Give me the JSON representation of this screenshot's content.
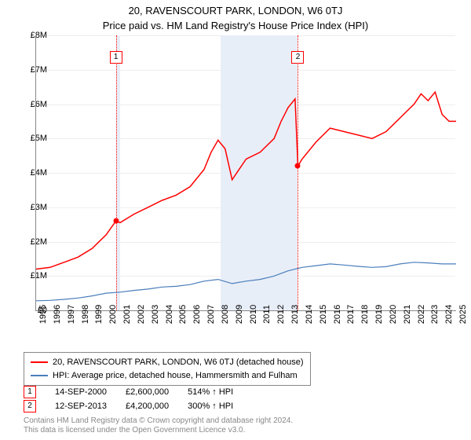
{
  "title": "20, RAVENSCOURT PARK, LONDON, W6 0TJ",
  "subtitle": "Price paid vs. HM Land Registry's House Price Index (HPI)",
  "chart": {
    "type": "line",
    "background_color": "#ffffff",
    "grid_color": "#eeeeee",
    "axis_color": "#888888",
    "x_years": [
      1995,
      1996,
      1997,
      1998,
      1999,
      2000,
      2001,
      2002,
      2003,
      2004,
      2005,
      2006,
      2007,
      2008,
      2009,
      2010,
      2011,
      2012,
      2013,
      2014,
      2015,
      2016,
      2017,
      2018,
      2019,
      2020,
      2021,
      2022,
      2023,
      2024,
      2025
    ],
    "x_min": 1995,
    "x_max": 2025,
    "y_min": 0,
    "y_max": 8000000,
    "y_ticks": [
      "£0",
      "£1M",
      "£2M",
      "£3M",
      "£4M",
      "£5M",
      "£6M",
      "£7M",
      "£8M"
    ],
    "shaded_ranges": [
      {
        "from": 2000.7,
        "to": 2001.0,
        "color": "#e8eef8"
      },
      {
        "from": 2008.2,
        "to": 2013.7,
        "color": "#e8eef8"
      }
    ],
    "event_lines": [
      {
        "x": 2000.7,
        "color": "#ff0000",
        "label": "1",
        "dot_y": 2600000
      },
      {
        "x": 2013.7,
        "color": "#ff0000",
        "label": "2",
        "dot_y": 4200000
      }
    ],
    "series": [
      {
        "name": "20, RAVENSCOURT PARK, LONDON, W6 0TJ (detached house)",
        "color": "#ff0000",
        "line_width": 1.5,
        "points": [
          [
            1995,
            1200000
          ],
          [
            1996,
            1250000
          ],
          [
            1997,
            1400000
          ],
          [
            1998,
            1550000
          ],
          [
            1999,
            1800000
          ],
          [
            2000,
            2200000
          ],
          [
            2000.7,
            2600000
          ],
          [
            2001,
            2550000
          ],
          [
            2002,
            2800000
          ],
          [
            2003,
            3000000
          ],
          [
            2004,
            3200000
          ],
          [
            2005,
            3350000
          ],
          [
            2006,
            3600000
          ],
          [
            2007,
            4100000
          ],
          [
            2007.5,
            4600000
          ],
          [
            2008,
            4950000
          ],
          [
            2008.5,
            4700000
          ],
          [
            2009,
            3800000
          ],
          [
            2009.5,
            4100000
          ],
          [
            2010,
            4400000
          ],
          [
            2011,
            4600000
          ],
          [
            2012,
            5000000
          ],
          [
            2012.5,
            5500000
          ],
          [
            2013,
            5900000
          ],
          [
            2013.5,
            6150000
          ],
          [
            2013.7,
            4200000
          ],
          [
            2014,
            4400000
          ],
          [
            2015,
            4900000
          ],
          [
            2016,
            5300000
          ],
          [
            2017,
            5200000
          ],
          [
            2018,
            5100000
          ],
          [
            2019,
            5000000
          ],
          [
            2020,
            5200000
          ],
          [
            2021,
            5600000
          ],
          [
            2022,
            6000000
          ],
          [
            2022.5,
            6300000
          ],
          [
            2023,
            6100000
          ],
          [
            2023.5,
            6350000
          ],
          [
            2024,
            5700000
          ],
          [
            2024.5,
            5500000
          ],
          [
            2025,
            5500000
          ]
        ]
      },
      {
        "name": "HPI: Average price, detached house, Hammersmith and Fulham",
        "color": "#4a7ebb",
        "line_width": 1.2,
        "points": [
          [
            1995,
            280000
          ],
          [
            1996,
            290000
          ],
          [
            1997,
            320000
          ],
          [
            1998,
            360000
          ],
          [
            1999,
            420000
          ],
          [
            2000,
            500000
          ],
          [
            2001,
            530000
          ],
          [
            2002,
            580000
          ],
          [
            2003,
            620000
          ],
          [
            2004,
            680000
          ],
          [
            2005,
            700000
          ],
          [
            2006,
            750000
          ],
          [
            2007,
            850000
          ],
          [
            2008,
            900000
          ],
          [
            2009,
            780000
          ],
          [
            2010,
            850000
          ],
          [
            2011,
            900000
          ],
          [
            2012,
            1000000
          ],
          [
            2013,
            1150000
          ],
          [
            2014,
            1250000
          ],
          [
            2015,
            1300000
          ],
          [
            2016,
            1350000
          ],
          [
            2017,
            1320000
          ],
          [
            2018,
            1280000
          ],
          [
            2019,
            1250000
          ],
          [
            2020,
            1270000
          ],
          [
            2021,
            1350000
          ],
          [
            2022,
            1400000
          ],
          [
            2023,
            1380000
          ],
          [
            2024,
            1350000
          ],
          [
            2025,
            1350000
          ]
        ]
      }
    ]
  },
  "legend": {
    "items": [
      {
        "color": "#ff0000",
        "label": "20, RAVENSCOURT PARK, LONDON, W6 0TJ (detached house)"
      },
      {
        "color": "#4a7ebb",
        "label": "HPI: Average price, detached house, Hammersmith and Fulham"
      }
    ]
  },
  "events_table": [
    {
      "marker": "1",
      "date": "14-SEP-2000",
      "price": "£2,600,000",
      "pct": "514% ↑ HPI"
    },
    {
      "marker": "2",
      "date": "12-SEP-2013",
      "price": "£4,200,000",
      "pct": "300% ↑ HPI"
    }
  ],
  "footer": {
    "line1": "Contains HM Land Registry data © Crown copyright and database right 2024.",
    "line2": "This data is licensed under the Open Government Licence v3.0."
  }
}
